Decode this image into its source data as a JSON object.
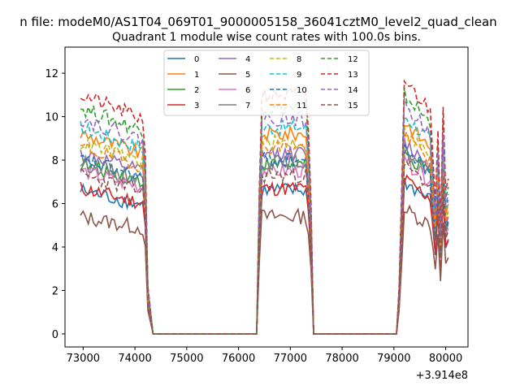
{
  "chart_data": {
    "type": "line",
    "suptitle": "n file: modeM0/AS1T04_069T01_9000005158_36041cztM0_level2_quad_clean",
    "title": "Quadrant 1 module wise count rates with 100.0s bins.",
    "xlabel": "",
    "ylabel": "",
    "offset_text": "+3.914e8",
    "x_offset": 391400000,
    "xlim": [
      72650,
      80430
    ],
    "ylim": [
      -0.6,
      13.2
    ],
    "x_ticks": [
      73000,
      74000,
      75000,
      76000,
      77000,
      78000,
      79000,
      80000
    ],
    "y_ticks": [
      0,
      2,
      4,
      6,
      8,
      10,
      12
    ],
    "grid": false,
    "legend_position": "top-center",
    "legend_columns": 4,
    "colors": {
      "c0": "#1f77b4",
      "c1": "#ff7f0e",
      "c2": "#2ca02c",
      "c3": "#d62728",
      "c4": "#9467bd",
      "c5": "#8c564b",
      "c6": "#e377c2",
      "c7": "#7f7f7f",
      "c8": "#bcbd22",
      "c9": "#17becf"
    },
    "series": [
      {
        "name": "0",
        "base": 6.6,
        "color": "#1f77b4",
        "dash": false
      },
      {
        "name": "1",
        "base": 9.2,
        "color": "#ff7f0e",
        "dash": false
      },
      {
        "name": "2",
        "base": 7.8,
        "color": "#2ca02c",
        "dash": false
      },
      {
        "name": "3",
        "base": 6.7,
        "color": "#d62728",
        "dash": false
      },
      {
        "name": "4",
        "base": 8.3,
        "color": "#9467bd",
        "dash": false
      },
      {
        "name": "5",
        "base": 5.4,
        "color": "#8c564b",
        "dash": false
      },
      {
        "name": "6",
        "base": 7.5,
        "color": "#e377c2",
        "dash": false
      },
      {
        "name": "7",
        "base": 7.9,
        "color": "#7f7f7f",
        "dash": false
      },
      {
        "name": "8",
        "base": 8.8,
        "color": "#bcbd22",
        "dash": true
      },
      {
        "name": "9",
        "base": 9.5,
        "color": "#17becf",
        "dash": true
      },
      {
        "name": "10",
        "base": 8.0,
        "color": "#1f77b4",
        "dash": true
      },
      {
        "name": "11",
        "base": 8.6,
        "color": "#ff7f0e",
        "dash": true
      },
      {
        "name": "12",
        "base": 10.4,
        "color": "#2ca02c",
        "dash": true
      },
      {
        "name": "13",
        "base": 11.0,
        "color": "#d62728",
        "dash": true
      },
      {
        "name": "14",
        "base": 9.9,
        "color": "#9467bd",
        "dash": true
      },
      {
        "name": "15",
        "base": 7.3,
        "color": "#8c564b",
        "dash": true
      }
    ]
  }
}
